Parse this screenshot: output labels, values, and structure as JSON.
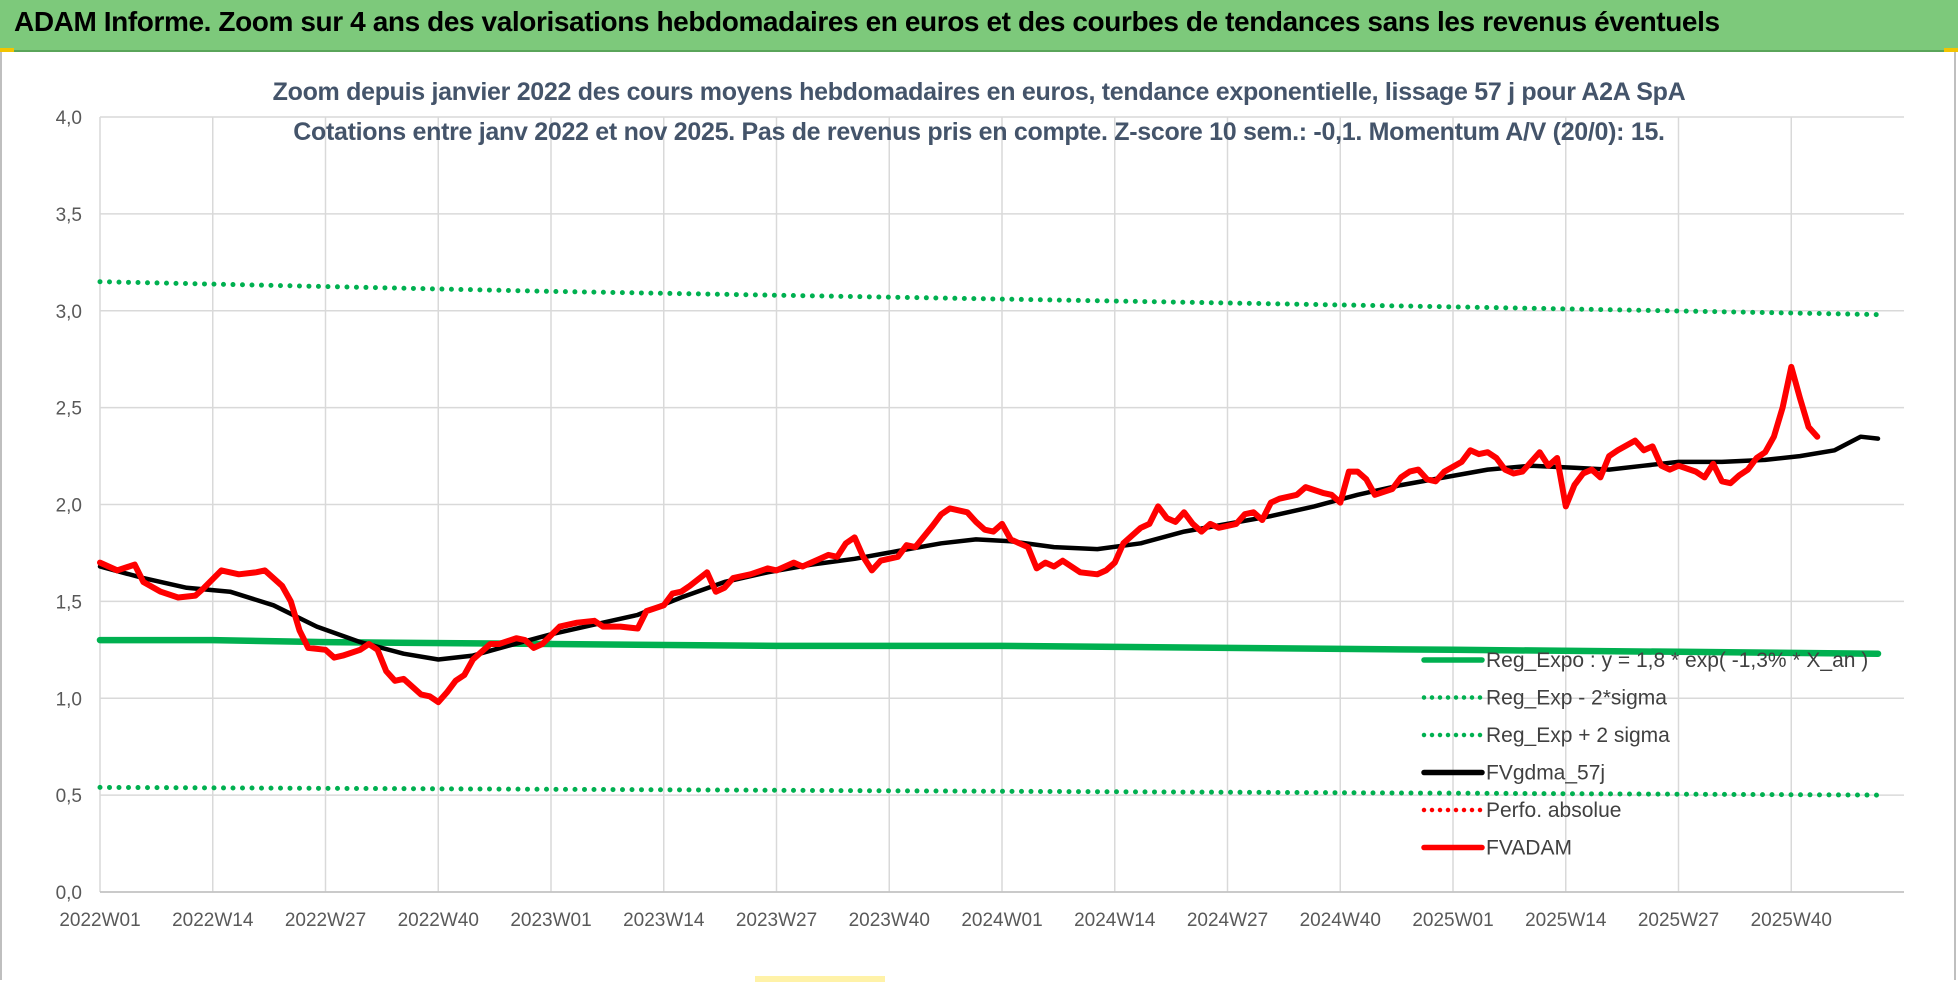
{
  "banner": {
    "title": "ADAM Informe. Zoom sur 4 ans des valorisations hebdomadaires en euros et des courbes de tendances sans les revenus éventuels"
  },
  "colors": {
    "banner": "#7dc97b",
    "green": "#00b050",
    "red": "#ff0000",
    "black": "#000000",
    "title": "#44546a"
  },
  "chart_data": {
    "type": "line",
    "title": "Zoom depuis janvier 2022 des cours moyens hebdomadaires en euros, tendance exponentielle, lissage 57 j pour A2A SpA",
    "subtitle": "Cotations entre janv 2022 et nov 2025. Pas de revenus pris en compte. Z-score 10 sem.: -0,1. Momentum A/V (20/0): 15.",
    "xlabel": "",
    "ylabel": "",
    "xlim": [
      0,
      208
    ],
    "ylim": [
      0,
      4
    ],
    "grid": true,
    "legend_position": "right",
    "x_ticks": [
      {
        "x": 0,
        "label": "2022W01"
      },
      {
        "x": 13,
        "label": "2022W14"
      },
      {
        "x": 26,
        "label": "2022W27"
      },
      {
        "x": 39,
        "label": "2022W40"
      },
      {
        "x": 52,
        "label": "2023W01"
      },
      {
        "x": 65,
        "label": "2023W14"
      },
      {
        "x": 78,
        "label": "2023W27"
      },
      {
        "x": 91,
        "label": "2023W40"
      },
      {
        "x": 104,
        "label": "2024W01"
      },
      {
        "x": 117,
        "label": "2024W14"
      },
      {
        "x": 130,
        "label": "2024W27"
      },
      {
        "x": 143,
        "label": "2024W40"
      },
      {
        "x": 156,
        "label": "2025W01"
      },
      {
        "x": 169,
        "label": "2025W14"
      },
      {
        "x": 182,
        "label": "2025W27"
      },
      {
        "x": 195,
        "label": "2025W40"
      }
    ],
    "y_ticks": [
      {
        "y": 0,
        "label": "0,0"
      },
      {
        "y": 0.5,
        "label": "0,5"
      },
      {
        "y": 1.0,
        "label": "1,0"
      },
      {
        "y": 1.5,
        "label": "1,5"
      },
      {
        "y": 2.0,
        "label": "2,0"
      },
      {
        "y": 2.5,
        "label": "2,5"
      },
      {
        "y": 3.0,
        "label": "3,0"
      },
      {
        "y": 3.5,
        "label": "3,5"
      },
      {
        "y": 4.0,
        "label": "4,0"
      }
    ],
    "series": [
      {
        "name": "Reg_Expo : y = 1,8 * exp( -1,3% * X_an )",
        "style": "solid-thick",
        "color": "#00b050",
        "points": [
          [
            0,
            1.3
          ],
          [
            13,
            1.3
          ],
          [
            26,
            1.29
          ],
          [
            52,
            1.28
          ],
          [
            78,
            1.27
          ],
          [
            104,
            1.27
          ],
          [
            130,
            1.26
          ],
          [
            156,
            1.25
          ],
          [
            182,
            1.24
          ],
          [
            205,
            1.23
          ]
        ]
      },
      {
        "name": "Reg_Exp - 2*sigma",
        "style": "dotted",
        "color": "#00b050",
        "points": [
          [
            0,
            0.54
          ],
          [
            52,
            0.53
          ],
          [
            104,
            0.52
          ],
          [
            156,
            0.51
          ],
          [
            205,
            0.5
          ]
        ]
      },
      {
        "name": "Reg_Exp + 2 sigma",
        "style": "dotted",
        "color": "#00b050",
        "points": [
          [
            0,
            3.15
          ],
          [
            52,
            3.1
          ],
          [
            104,
            3.06
          ],
          [
            156,
            3.02
          ],
          [
            205,
            2.98
          ]
        ]
      },
      {
        "name": "FVgdma_57j",
        "style": "solid",
        "color": "#000000",
        "points": [
          [
            0,
            1.68
          ],
          [
            5,
            1.62
          ],
          [
            10,
            1.57
          ],
          [
            15,
            1.55
          ],
          [
            20,
            1.48
          ],
          [
            25,
            1.37
          ],
          [
            30,
            1.29
          ],
          [
            35,
            1.23
          ],
          [
            39,
            1.2
          ],
          [
            43,
            1.22
          ],
          [
            47,
            1.27
          ],
          [
            52,
            1.33
          ],
          [
            57,
            1.38
          ],
          [
            62,
            1.43
          ],
          [
            67,
            1.52
          ],
          [
            72,
            1.6
          ],
          [
            77,
            1.65
          ],
          [
            82,
            1.69
          ],
          [
            87,
            1.72
          ],
          [
            92,
            1.76
          ],
          [
            97,
            1.8
          ],
          [
            101,
            1.82
          ],
          [
            105,
            1.81
          ],
          [
            110,
            1.78
          ],
          [
            115,
            1.77
          ],
          [
            120,
            1.8
          ],
          [
            125,
            1.86
          ],
          [
            130,
            1.9
          ],
          [
            135,
            1.94
          ],
          [
            140,
            1.99
          ],
          [
            145,
            2.05
          ],
          [
            150,
            2.1
          ],
          [
            155,
            2.14
          ],
          [
            160,
            2.18
          ],
          [
            165,
            2.2
          ],
          [
            170,
            2.19
          ],
          [
            174,
            2.18
          ],
          [
            178,
            2.2
          ],
          [
            182,
            2.22
          ],
          [
            187,
            2.22
          ],
          [
            192,
            2.23
          ],
          [
            196,
            2.25
          ],
          [
            200,
            2.28
          ],
          [
            203,
            2.35
          ],
          [
            205,
            2.34
          ]
        ]
      },
      {
        "name": "Perfo. absolue",
        "style": "dotted",
        "color": "#ff0000",
        "points": []
      },
      {
        "name": "FVADAM",
        "style": "solid-thick",
        "color": "#ff0000",
        "points": [
          [
            0,
            1.7
          ],
          [
            2,
            1.66
          ],
          [
            4,
            1.69
          ],
          [
            5,
            1.6
          ],
          [
            7,
            1.55
          ],
          [
            9,
            1.52
          ],
          [
            11,
            1.53
          ],
          [
            12,
            1.57
          ],
          [
            14,
            1.66
          ],
          [
            16,
            1.64
          ],
          [
            18,
            1.65
          ],
          [
            19,
            1.66
          ],
          [
            21,
            1.58
          ],
          [
            22,
            1.5
          ],
          [
            23,
            1.35
          ],
          [
            24,
            1.26
          ],
          [
            26,
            1.25
          ],
          [
            27,
            1.21
          ],
          [
            28,
            1.22
          ],
          [
            30,
            1.25
          ],
          [
            31,
            1.28
          ],
          [
            32,
            1.25
          ],
          [
            33,
            1.14
          ],
          [
            34,
            1.09
          ],
          [
            35,
            1.1
          ],
          [
            37,
            1.02
          ],
          [
            38,
            1.01
          ],
          [
            39,
            0.98
          ],
          [
            40,
            1.03
          ],
          [
            41,
            1.09
          ],
          [
            42,
            1.12
          ],
          [
            43,
            1.2
          ],
          [
            45,
            1.28
          ],
          [
            46,
            1.28
          ],
          [
            48,
            1.31
          ],
          [
            49,
            1.3
          ],
          [
            50,
            1.26
          ],
          [
            51,
            1.28
          ],
          [
            53,
            1.37
          ],
          [
            55,
            1.39
          ],
          [
            57,
            1.4
          ],
          [
            58,
            1.37
          ],
          [
            60,
            1.37
          ],
          [
            62,
            1.36
          ],
          [
            63,
            1.45
          ],
          [
            65,
            1.48
          ],
          [
            66,
            1.54
          ],
          [
            67,
            1.55
          ],
          [
            68,
            1.58
          ],
          [
            70,
            1.65
          ],
          [
            71,
            1.55
          ],
          [
            72,
            1.57
          ],
          [
            73,
            1.62
          ],
          [
            75,
            1.64
          ],
          [
            77,
            1.67
          ],
          [
            78,
            1.66
          ],
          [
            80,
            1.7
          ],
          [
            81,
            1.68
          ],
          [
            83,
            1.72
          ],
          [
            84,
            1.74
          ],
          [
            85,
            1.73
          ],
          [
            86,
            1.8
          ],
          [
            87,
            1.83
          ],
          [
            88,
            1.73
          ],
          [
            89,
            1.66
          ],
          [
            90,
            1.71
          ],
          [
            92,
            1.73
          ],
          [
            93,
            1.79
          ],
          [
            94,
            1.78
          ],
          [
            96,
            1.89
          ],
          [
            97,
            1.95
          ],
          [
            98,
            1.98
          ],
          [
            100,
            1.96
          ],
          [
            101,
            1.91
          ],
          [
            102,
            1.87
          ],
          [
            103,
            1.86
          ],
          [
            104,
            1.9
          ],
          [
            105,
            1.82
          ],
          [
            106,
            1.8
          ],
          [
            107,
            1.78
          ],
          [
            108,
            1.67
          ],
          [
            109,
            1.7
          ],
          [
            110,
            1.68
          ],
          [
            111,
            1.71
          ],
          [
            113,
            1.65
          ],
          [
            115,
            1.64
          ],
          [
            116,
            1.66
          ],
          [
            117,
            1.7
          ],
          [
            118,
            1.8
          ],
          [
            120,
            1.88
          ],
          [
            121,
            1.9
          ],
          [
            122,
            1.99
          ],
          [
            123,
            1.93
          ],
          [
            124,
            1.91
          ],
          [
            125,
            1.96
          ],
          [
            126,
            1.9
          ],
          [
            127,
            1.86
          ],
          [
            128,
            1.9
          ],
          [
            129,
            1.88
          ],
          [
            131,
            1.9
          ],
          [
            132,
            1.95
          ],
          [
            133,
            1.96
          ],
          [
            134,
            1.92
          ],
          [
            135,
            2.01
          ],
          [
            136,
            2.03
          ],
          [
            138,
            2.05
          ],
          [
            139,
            2.09
          ],
          [
            141,
            2.06
          ],
          [
            142,
            2.05
          ],
          [
            143,
            2.01
          ],
          [
            144,
            2.17
          ],
          [
            145,
            2.17
          ],
          [
            146,
            2.13
          ],
          [
            147,
            2.05
          ],
          [
            149,
            2.08
          ],
          [
            150,
            2.14
          ],
          [
            151,
            2.17
          ],
          [
            152,
            2.18
          ],
          [
            153,
            2.13
          ],
          [
            154,
            2.12
          ],
          [
            155,
            2.17
          ],
          [
            157,
            2.22
          ],
          [
            158,
            2.28
          ],
          [
            159,
            2.26
          ],
          [
            160,
            2.27
          ],
          [
            161,
            2.24
          ],
          [
            162,
            2.18
          ],
          [
            163,
            2.16
          ],
          [
            164,
            2.17
          ],
          [
            165,
            2.22
          ],
          [
            166,
            2.27
          ],
          [
            167,
            2.2
          ],
          [
            168,
            2.24
          ],
          [
            169,
            1.99
          ],
          [
            170,
            2.1
          ],
          [
            171,
            2.16
          ],
          [
            172,
            2.18
          ],
          [
            173,
            2.14
          ],
          [
            174,
            2.25
          ],
          [
            175,
            2.28
          ],
          [
            177,
            2.33
          ],
          [
            178,
            2.28
          ],
          [
            179,
            2.3
          ],
          [
            180,
            2.2
          ],
          [
            181,
            2.18
          ],
          [
            182,
            2.2
          ],
          [
            184,
            2.17
          ],
          [
            185,
            2.14
          ],
          [
            186,
            2.21
          ],
          [
            187,
            2.12
          ],
          [
            188,
            2.11
          ],
          [
            189,
            2.15
          ],
          [
            190,
            2.18
          ],
          [
            191,
            2.24
          ],
          [
            192,
            2.27
          ],
          [
            193,
            2.35
          ],
          [
            194,
            2.5
          ],
          [
            195,
            2.71
          ],
          [
            196,
            2.55
          ],
          [
            197,
            2.4
          ],
          [
            198,
            2.35
          ]
        ]
      }
    ],
    "legend": [
      {
        "label": "Reg_Expo : y = 1,8 * exp( -1,3% * X_an )",
        "style": "solid",
        "color": "#00b050"
      },
      {
        "label": "Reg_Exp - 2*sigma",
        "style": "dotted",
        "color": "#00b050"
      },
      {
        "label": "Reg_Exp + 2 sigma",
        "style": "dotted",
        "color": "#00b050"
      },
      {
        "label": "FVgdma_57j",
        "style": "solid",
        "color": "#000000"
      },
      {
        "label": "Perfo. absolue",
        "style": "dotted",
        "color": "#ff0000"
      },
      {
        "label": "FVADAM",
        "style": "solid",
        "color": "#ff0000"
      }
    ]
  }
}
